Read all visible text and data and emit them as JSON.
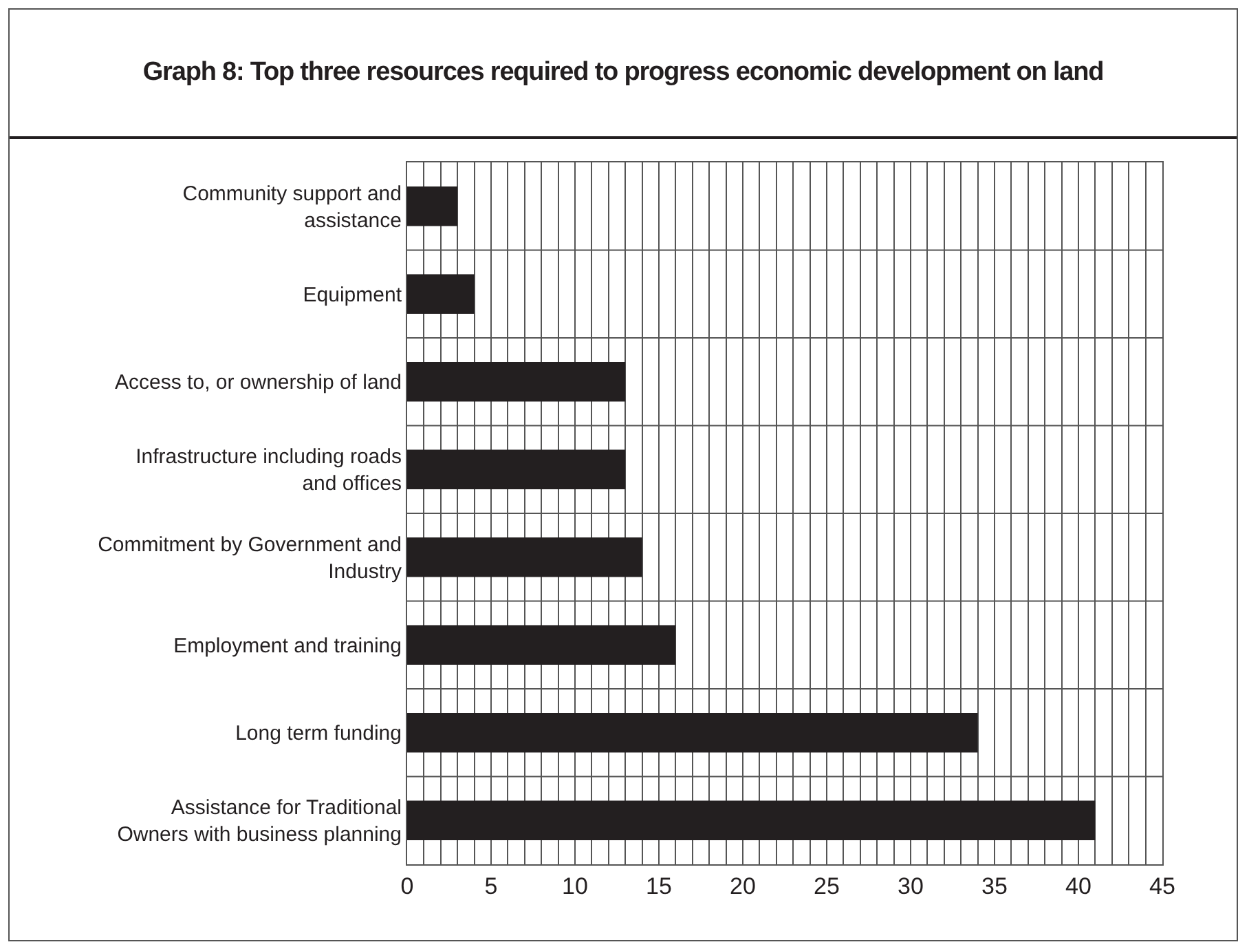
{
  "chart_data": {
    "type": "bar",
    "orientation": "horizontal",
    "title": "Graph 8: Top three resources required to progress economic development on land",
    "categories": [
      "Community support and assistance",
      "Equipment",
      "Access to, or ownership of land",
      "Infrastructure including roads and offices",
      "Commitment by Government and Industry",
      "Employment and training",
      "Long term funding",
      "Assistance for Traditional Owners with business planning"
    ],
    "values": [
      3,
      4,
      13,
      13,
      14,
      16,
      34,
      41
    ],
    "color": "#231f20",
    "xlim": [
      0,
      45
    ],
    "xticks": [
      0,
      {
        "value": 1,
        "label": null
      },
      {
        "value": 2,
        "label": null
      },
      {
        "value": 3,
        "label": null
      },
      {
        "value": 4,
        "label": null
      },
      5,
      {
        "value": 6,
        "label": null
      },
      {
        "value": 7,
        "label": null
      },
      {
        "value": 8,
        "label": null
      },
      {
        "value": 9,
        "label": null
      },
      10,
      {
        "value": 11,
        "label": null
      },
      {
        "value": 12,
        "label": null
      },
      {
        "value": 13,
        "label": null
      },
      {
        "value": 14,
        "label": null
      },
      15,
      {
        "value": 16,
        "label": null
      },
      {
        "value": 17,
        "label": null
      },
      {
        "value": 18,
        "label": null
      },
      {
        "value": 19,
        "label": null
      },
      20,
      {
        "value": 21,
        "label": null
      },
      {
        "value": 22,
        "label": null
      },
      {
        "value": 23,
        "label": null
      },
      {
        "value": 24,
        "label": null
      },
      25,
      {
        "value": 26,
        "label": null
      },
      {
        "value": 27,
        "label": null
      },
      {
        "value": 28,
        "label": null
      },
      {
        "value": 29,
        "label": null
      },
      30,
      {
        "value": 31,
        "label": null
      },
      {
        "value": 32,
        "label": null
      },
      {
        "value": 33,
        "label": null
      },
      {
        "value": 34,
        "label": null
      },
      35,
      {
        "value": 36,
        "label": null
      },
      {
        "value": 37,
        "label": null
      },
      {
        "value": 38,
        "label": null
      },
      {
        "value": 39,
        "label": null
      },
      40,
      {
        "value": 41,
        "label": null
      },
      {
        "value": 42,
        "label": null
      },
      {
        "value": 43,
        "label": null
      },
      {
        "value": 44,
        "label": null
      },
      45
    ],
    "grid": true
  }
}
